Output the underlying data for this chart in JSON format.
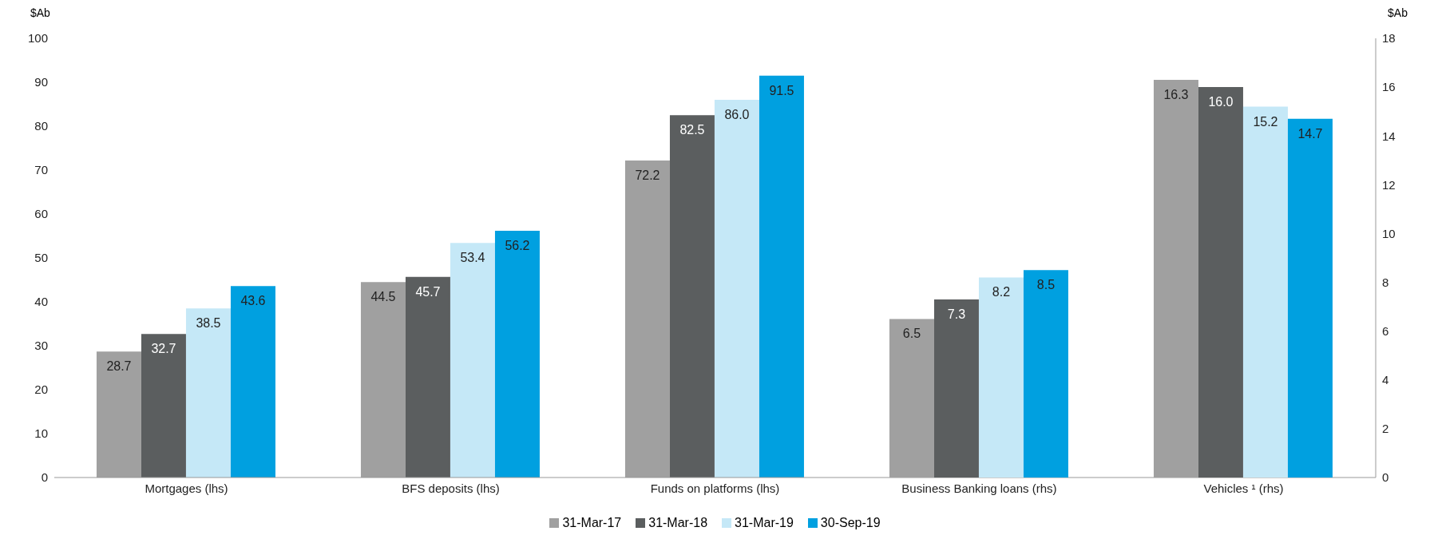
{
  "chart_data": {
    "type": "bar",
    "ylabel": "$Ab",
    "y2label": "$Ab",
    "categories": [
      "Mortgages (lhs)",
      "BFS deposits (lhs)",
      "Funds on platforms (lhs)",
      "Business Banking loans (rhs)",
      "Vehicles ¹ (rhs)"
    ],
    "series": [
      {
        "name": "31-Mar-17",
        "color": "#a0a0a0",
        "values": [
          28.7,
          44.5,
          72.2,
          null,
          null
        ],
        "value_labels": [
          "28.7",
          "44.5",
          "72.2",
          null,
          null
        ]
      },
      {
        "name": "31-Mar-18",
        "color": "#5b5e5f",
        "values": [
          32.7,
          45.7,
          82.5,
          null,
          null
        ],
        "value_labels": [
          "32.7",
          "45.7",
          "82.5",
          null,
          null
        ]
      },
      {
        "name": "31-Mar-19",
        "color": "#c5e8f7",
        "values": [
          38.5,
          53.4,
          86.0,
          null,
          null
        ],
        "value_labels": [
          "38.5",
          "53.4",
          "86.0",
          null,
          null
        ]
      },
      {
        "name": "30-Sep-19",
        "color": "#00a0e0",
        "values": [
          43.6,
          56.2,
          91.5,
          null,
          null
        ],
        "value_labels": [
          "43.6",
          "56.2",
          "91.5",
          null,
          null
        ]
      },
      {
        "color": "#a0a0a0",
        "axis": "y2",
        "values": [
          null,
          null,
          null,
          6.5,
          16.3
        ],
        "value_labels": [
          null,
          null,
          null,
          "6.5",
          "16.3"
        ]
      },
      {
        "color": "#5b5e5f",
        "axis": "y2",
        "values": [
          null,
          null,
          null,
          7.3,
          16.0
        ],
        "value_labels": [
          null,
          null,
          null,
          "7.3",
          "16.0"
        ]
      },
      {
        "color": "#c5e8f7",
        "axis": "y2",
        "values": [
          null,
          null,
          null,
          8.2,
          15.2
        ],
        "value_labels": [
          null,
          null,
          null,
          "8.2",
          "15.2"
        ]
      },
      {
        "color": "#00a0e0",
        "axis": "y2",
        "values": [
          null,
          null,
          null,
          8.5,
          14.7
        ],
        "value_labels": [
          null,
          null,
          null,
          "8.5",
          "14.7"
        ]
      }
    ],
    "ylim": [
      0,
      100
    ],
    "yticks": [
      0,
      10,
      20,
      30,
      40,
      50,
      60,
      70,
      80,
      90,
      100
    ],
    "y2lim": [
      0,
      18
    ],
    "y2ticks": [
      0,
      2,
      4,
      6,
      8,
      10,
      12,
      14,
      16,
      18
    ],
    "legend": "bottom",
    "grid": false
  }
}
